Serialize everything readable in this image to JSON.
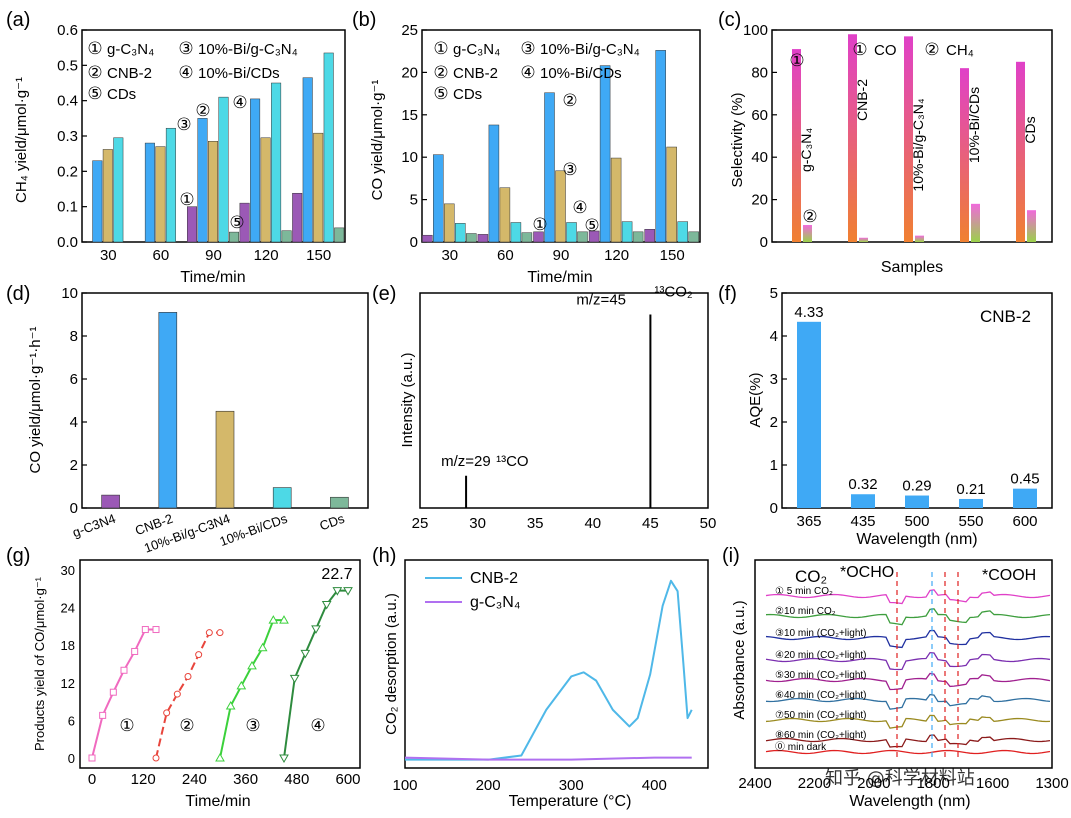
{
  "colors": {
    "gcn": "#9B59B6",
    "cnb2": "#3FA9F5",
    "bi_gcn": "#D4B86A",
    "bi_cds": "#4DD9E6",
    "cds": "#7DB89A",
    "red_text": "#E02020",
    "co_sel": "#F06A3A",
    "ch4_sel": "#F06ADB",
    "aqe_bar": "#3FA9F5",
    "g_c1": "#F06ABF",
    "g_c2": "#E8453C",
    "g_c3": "#3BD13B",
    "g_c4": "#2E8B3E",
    "h_cnb2": "#4FB8E8",
    "h_gcn": "#B070F0"
  },
  "watermark": "知乎 @科学材料站",
  "chart_data": [
    {
      "id": "a",
      "panel_label": "(a)",
      "type": "bar",
      "categories": [
        "30",
        "60",
        "90",
        "120",
        "150"
      ],
      "series": [
        {
          "name": "g-C3N4",
          "values": [
            0,
            0,
            0.1,
            0.11,
            0.138
          ]
        },
        {
          "name": "CNB-2",
          "values": [
            0.23,
            0.28,
            0.35,
            0.405,
            0.465
          ]
        },
        {
          "name": "10%-Bi/g-C3N4",
          "values": [
            0.262,
            0.27,
            0.285,
            0.295,
            0.308
          ]
        },
        {
          "name": "10%-Bi/CDs",
          "values": [
            0.295,
            0.322,
            0.41,
            0.45,
            0.535
          ]
        },
        {
          "name": "CDs",
          "values": [
            0,
            0,
            0.028,
            0.032,
            0.04
          ]
        }
      ],
      "legend": [
        {
          "num": "①",
          "label": "g-C₃N₄"
        },
        {
          "num": "③",
          "label": "10%-Bi/g-C₃N₄"
        },
        {
          "num": "②",
          "label": "CNB-2"
        },
        {
          "num": "④",
          "label": "10%-Bi/CDs"
        },
        {
          "num": "⑤",
          "label": "CDs"
        }
      ],
      "annotations": [
        "①",
        "②",
        "③",
        "④",
        "⑤"
      ],
      "xlabel": "Time/min",
      "ylabel": "CH₄ yield/μmol·g⁻¹",
      "ylim": [
        0,
        0.6
      ],
      "yticks": [
        "0.0",
        "0.1",
        "0.2",
        "0.3",
        "0.4",
        "0.5",
        "0.6"
      ]
    },
    {
      "id": "b",
      "panel_label": "(b)",
      "type": "bar",
      "categories": [
        "30",
        "60",
        "90",
        "120",
        "150"
      ],
      "series": [
        {
          "name": "g-C3N4",
          "values": [
            0.8,
            0.9,
            1.2,
            1.3,
            1.5
          ]
        },
        {
          "name": "CNB-2",
          "values": [
            10.3,
            13.8,
            17.6,
            20.8,
            22.6
          ]
        },
        {
          "name": "10%-Bi/g-C3N4",
          "values": [
            4.5,
            6.4,
            8.4,
            9.9,
            11.2
          ]
        },
        {
          "name": "10%-Bi/CDs",
          "values": [
            2.2,
            2.3,
            2.3,
            2.4,
            2.4
          ]
        },
        {
          "name": "CDs",
          "values": [
            1.0,
            1.1,
            1.2,
            1.2,
            1.2
          ]
        }
      ],
      "legend": [
        {
          "num": "①",
          "label": "g-C₃N₄"
        },
        {
          "num": "③",
          "label": "10%-Bi/g-C₃N₄"
        },
        {
          "num": "②",
          "label": "CNB-2"
        },
        {
          "num": "④",
          "label": "10%-Bi/CDs"
        },
        {
          "num": "⑤",
          "label": "CDs"
        }
      ],
      "annotations": [
        "①",
        "②",
        "③",
        "④",
        "⑤"
      ],
      "xlabel": "Time/min",
      "ylabel": "CO yield/μmol·g⁻¹",
      "ylim": [
        0,
        25
      ],
      "yticks": [
        "0",
        "5",
        "10",
        "15",
        "20",
        "25"
      ]
    },
    {
      "id": "c",
      "panel_label": "(c)",
      "type": "bar",
      "categories": [
        "g-C₃N₄",
        "CNB-2",
        "10%-Bi/g-C₃N₄",
        "10%-Bi/CDs",
        "CDs"
      ],
      "series": [
        {
          "name": "CO",
          "values": [
            91,
            98,
            97,
            82,
            85
          ]
        },
        {
          "name": "CH4",
          "values": [
            8,
            2,
            3,
            18,
            15
          ]
        }
      ],
      "legend": [
        {
          "num": "①",
          "label": "CO"
        },
        {
          "num": "②",
          "label": "CH₄"
        }
      ],
      "annotations": [
        "①",
        "②"
      ],
      "xlabel": "Samples",
      "ylabel": "Selectivity (%)",
      "ylim": [
        0,
        100
      ],
      "yticks": [
        "0",
        "20",
        "40",
        "60",
        "80",
        "100"
      ]
    },
    {
      "id": "d",
      "panel_label": "(d)",
      "type": "bar",
      "categories": [
        "g-C3N4",
        "CNB-2",
        "10%-Bi/g-C3N4",
        "10%-Bi/CDs",
        "CDs"
      ],
      "values": [
        0.6,
        9.1,
        4.5,
        0.95,
        0.5
      ],
      "xlabel": "",
      "ylabel": "CO yield/μmol·g⁻¹·h⁻¹",
      "ylim": [
        0,
        10
      ],
      "yticks": [
        "0",
        "2",
        "4",
        "6",
        "8",
        "10"
      ]
    },
    {
      "id": "e",
      "panel_label": "(e)",
      "type": "line",
      "peaks": [
        {
          "x": 29,
          "y": 0.15,
          "label": "m/z=29",
          "species": "¹³CO"
        },
        {
          "x": 45,
          "y": 0.9,
          "label": "m/z=45",
          "species": "¹³CO₂"
        }
      ],
      "xlabel": "",
      "ylabel": "Intensity (a.u.)",
      "xlim": [
        25,
        50
      ],
      "xticks": [
        "25",
        "30",
        "35",
        "40",
        "45",
        "50"
      ]
    },
    {
      "id": "f",
      "panel_label": "(f)",
      "type": "bar",
      "categories": [
        "365",
        "435",
        "500",
        "550",
        "600"
      ],
      "values": [
        4.33,
        0.32,
        0.29,
        0.21,
        0.45
      ],
      "value_labels": [
        "4.33",
        "0.32",
        "0.29",
        "0.21",
        "0.45"
      ],
      "legend_text": "CNB-2",
      "xlabel": "Wavelength (nm)",
      "ylabel": "AQE(%)",
      "ylim": [
        0,
        5
      ],
      "yticks": [
        "0",
        "1",
        "2",
        "3",
        "4",
        "5"
      ]
    },
    {
      "id": "g",
      "panel_label": "(g)",
      "type": "line",
      "series": [
        {
          "name": "①",
          "x": [
            0,
            25,
            50,
            75,
            100,
            125,
            150
          ],
          "y": [
            0,
            6.8,
            10.5,
            14,
            17,
            20.5,
            20.5
          ]
        },
        {
          "name": "②",
          "x": [
            150,
            175,
            200,
            225,
            250,
            275,
            300
          ],
          "y": [
            0,
            7.2,
            10.2,
            13,
            16.5,
            20,
            20
          ]
        },
        {
          "name": "③",
          "x": [
            300,
            325,
            350,
            375,
            400,
            425,
            450
          ],
          "y": [
            0,
            8.3,
            11.5,
            14.7,
            17.6,
            22,
            22
          ]
        },
        {
          "name": "④",
          "x": [
            450,
            475,
            500,
            525,
            550,
            575,
            600
          ],
          "y": [
            0,
            12.7,
            16.7,
            20.6,
            24.5,
            26.7,
            26.7
          ]
        }
      ],
      "annotation": "22.7",
      "xlabel": "Time/min",
      "ylabel": "Products yield of CO/μmol·g⁻¹",
      "xlim": [
        0,
        600
      ],
      "ylim": [
        0,
        30
      ],
      "xticks": [
        "0",
        "120",
        "240",
        "360",
        "480",
        "600"
      ],
      "yticks": [
        "0",
        "6",
        "12",
        "18",
        "24",
        "30"
      ]
    },
    {
      "id": "h",
      "panel_label": "(h)",
      "type": "line",
      "series": [
        {
          "name": "CNB-2",
          "x": [
            100,
            200,
            240,
            270,
            300,
            315,
            330,
            350,
            370,
            380,
            395,
            410,
            420,
            428,
            435,
            440,
            445
          ],
          "y": [
            0.04,
            0.04,
            0.06,
            0.28,
            0.44,
            0.46,
            0.42,
            0.28,
            0.2,
            0.24,
            0.45,
            0.78,
            0.9,
            0.85,
            0.5,
            0.24,
            0.28
          ]
        },
        {
          "name": "g-C₃N₄",
          "x": [
            100,
            200,
            300,
            400,
            445
          ],
          "y": [
            0.05,
            0.04,
            0.04,
            0.05,
            0.05
          ]
        }
      ],
      "xlabel": "Temperature (°C)",
      "ylabel": "CO₂ desorption (a.u.)",
      "xlim": [
        100,
        450
      ],
      "xticks": [
        "100",
        "200",
        "300",
        "400"
      ]
    },
    {
      "id": "i",
      "panel_label": "(i)",
      "type": "line",
      "series": [
        {
          "name": "① 5 min CO₂"
        },
        {
          "name": "②10 min CO₂"
        },
        {
          "name": "③10 min (CO₂+light)"
        },
        {
          "name": "④20 min (CO₂+light)"
        },
        {
          "name": "⑤30 min (CO₂+light)"
        },
        {
          "name": "⑥40 min (CO₂+light)"
        },
        {
          "name": "⑦50 min (CO₂+light)"
        },
        {
          "name": "⑧60 min (CO₂+light)"
        },
        {
          "name": "⓪ min dark"
        }
      ],
      "annotations": [
        "CO₂",
        "*OCHO",
        "*COOH"
      ],
      "xlabel": "Wavelength (nm)",
      "ylabel": "Absorbance (a.u.)",
      "xlim": [
        2400,
        1300
      ],
      "xticks": [
        "2400",
        "2200",
        "2000",
        "1800",
        "1600",
        "1300"
      ]
    }
  ]
}
